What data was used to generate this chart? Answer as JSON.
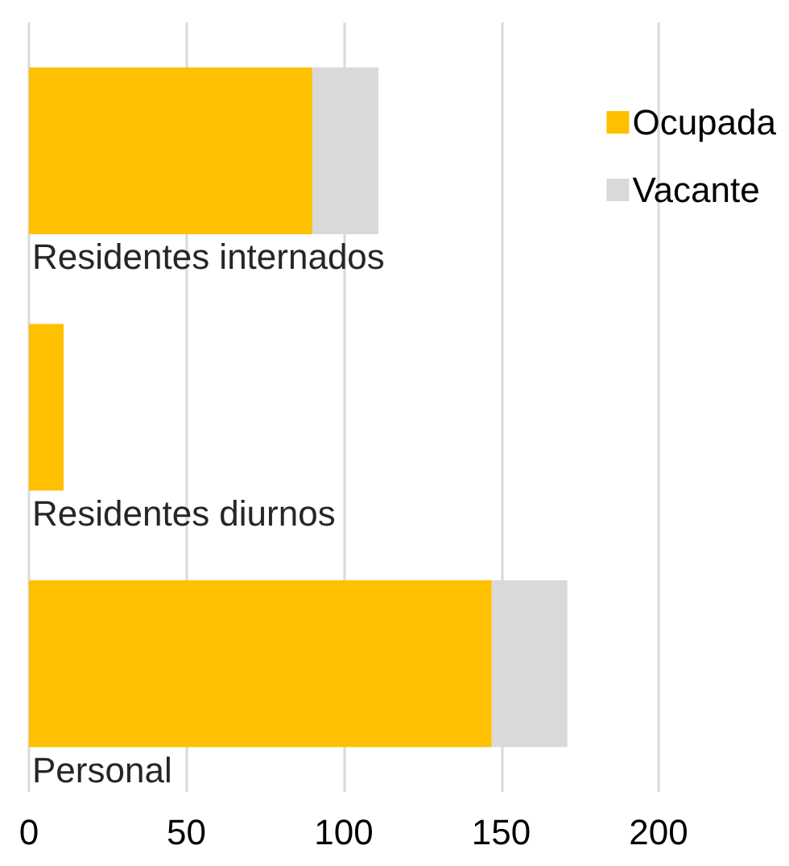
{
  "chart_data": {
    "type": "bar",
    "orientation": "horizontal",
    "stacked": true,
    "categories": [
      "Residentes internados",
      "Residentes diurnos",
      "Personal"
    ],
    "series": [
      {
        "name": "Ocupada",
        "color": "#ffc000",
        "values": [
          90,
          11,
          147
        ]
      },
      {
        "name": "Vacante",
        "color": "#d9d9d9",
        "values": [
          21,
          0,
          24
        ]
      }
    ],
    "xlim": [
      0,
      200
    ],
    "xticks": [
      0,
      50,
      100,
      150,
      200
    ],
    "grid": "x",
    "legend": "top right"
  }
}
